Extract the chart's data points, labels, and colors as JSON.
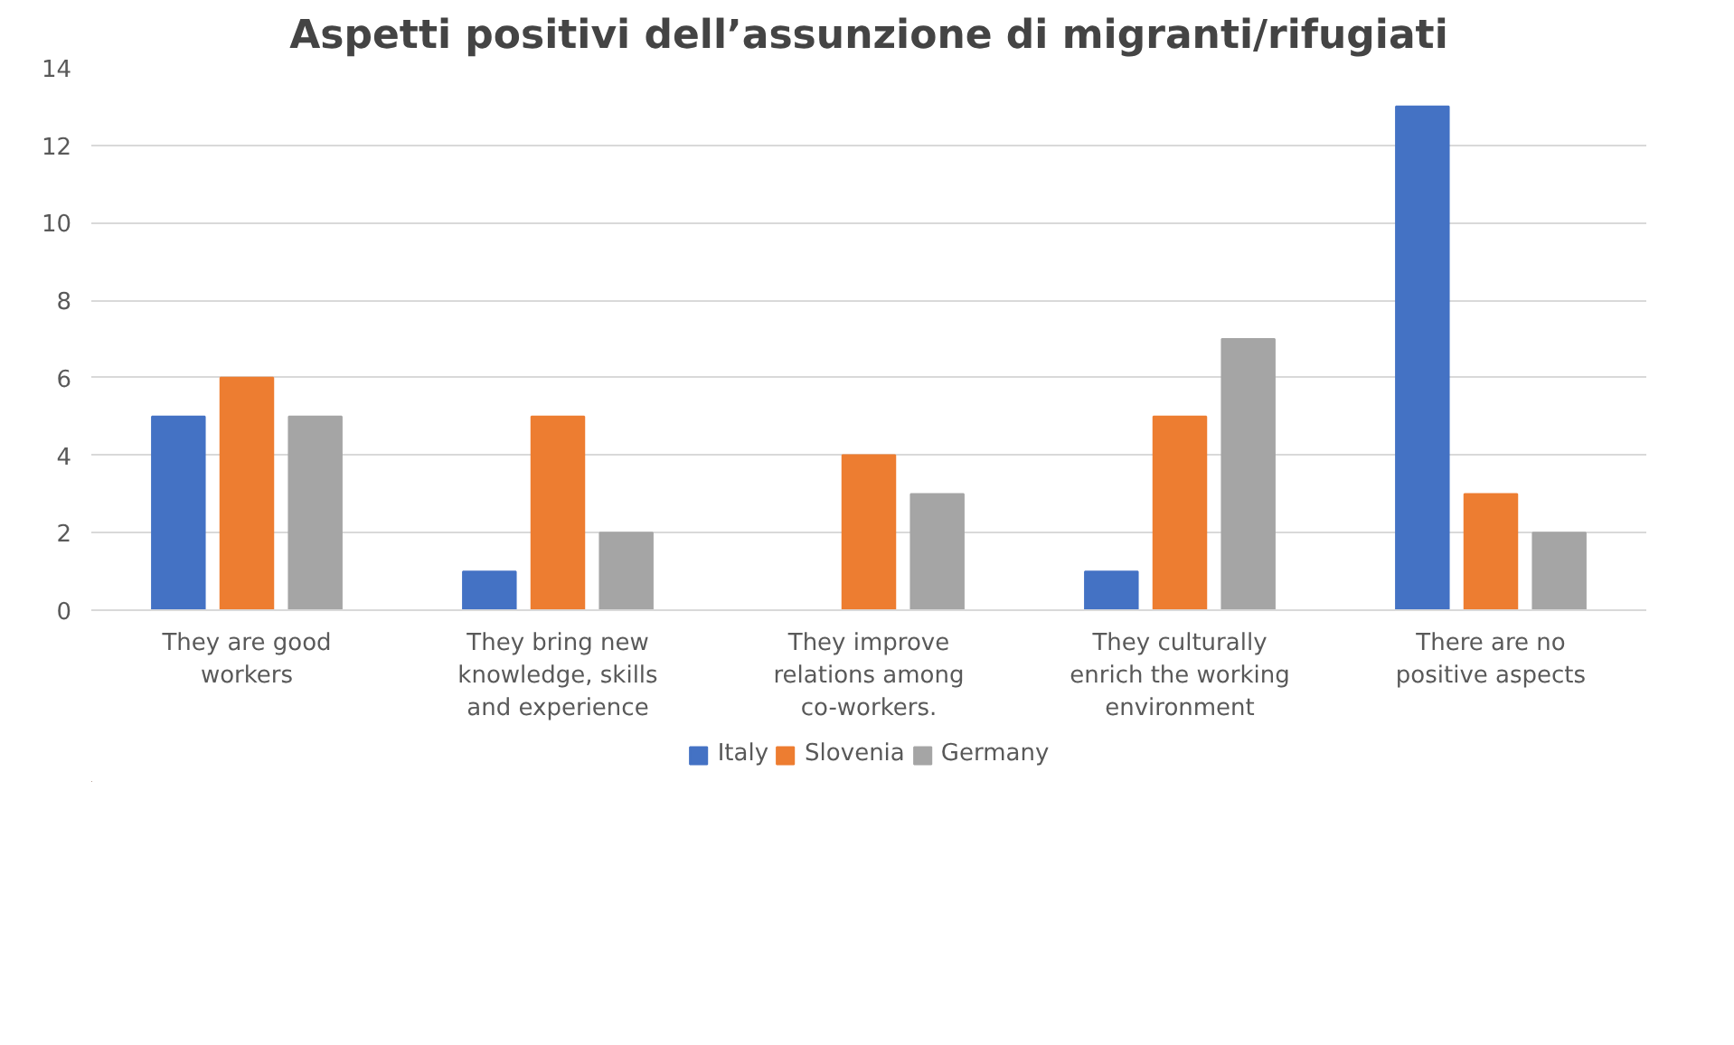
{
  "chart_data": {
    "type": "bar",
    "title": "Aspetti positivi dell’assunzione di migranti/rifugiati",
    "categories": [
      "They are good workers",
      "They bring new knowledge, skills and experience",
      "They improve relations among co-workers.",
      "They culturally enrich the working environment",
      "There are no positive aspects"
    ],
    "series": [
      {
        "name": "Italy",
        "color": "#4472c4",
        "values": [
          5,
          1,
          0,
          1,
          13
        ]
      },
      {
        "name": "Slovenia",
        "color": "#ed7d31",
        "values": [
          6,
          5,
          4,
          5,
          3
        ]
      },
      {
        "name": "Germany",
        "color": "#a5a5a5",
        "values": [
          5,
          2,
          3,
          7,
          2
        ]
      }
    ],
    "ylim": [
      0,
      14
    ],
    "yticks": [
      0,
      2,
      4,
      6,
      8,
      10,
      12,
      14
    ],
    "grid": "y",
    "legend": "bottom"
  }
}
